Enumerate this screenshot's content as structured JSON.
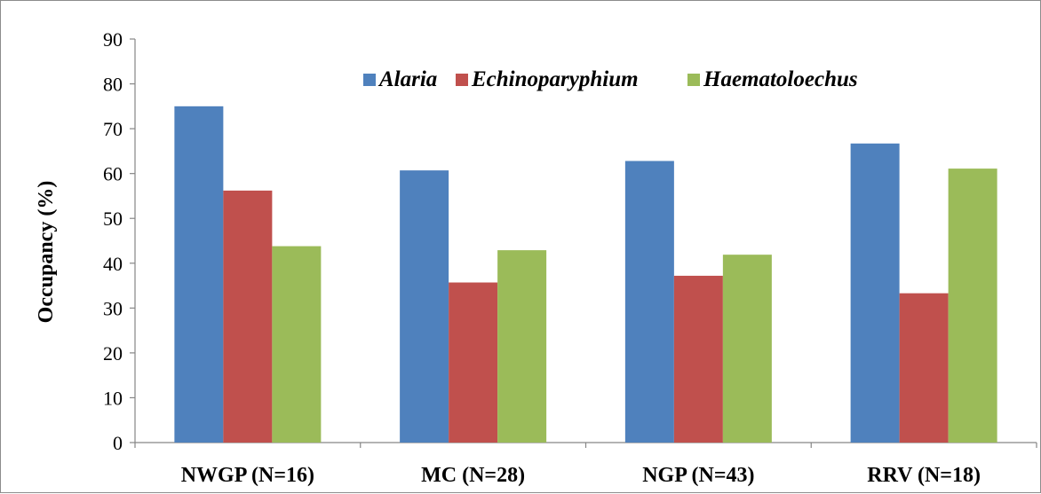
{
  "chart_data": {
    "type": "bar",
    "categories": [
      "NWGP (N=16)",
      "MC (N=28)",
      "NGP (N=43)",
      "RRV (N=18)"
    ],
    "series": [
      {
        "name": "Alaria",
        "color": "#4f81bd",
        "values": [
          75,
          60.7,
          62.8,
          66.7
        ]
      },
      {
        "name": "Echinoparyphium",
        "color": "#c0504d",
        "values": [
          56.2,
          35.7,
          37.2,
          33.3
        ]
      },
      {
        "name": "Haematoloechus",
        "color": "#9bbb59",
        "values": [
          43.8,
          42.9,
          41.9,
          61.1
        ]
      }
    ],
    "ylabel": "Occupancy (%)",
    "xlabel": "",
    "ylim": [
      0,
      90
    ],
    "yticks": [
      0,
      10,
      20,
      30,
      40,
      50,
      60,
      70,
      80,
      90
    ],
    "grid": false,
    "legend_position": "top-right"
  }
}
